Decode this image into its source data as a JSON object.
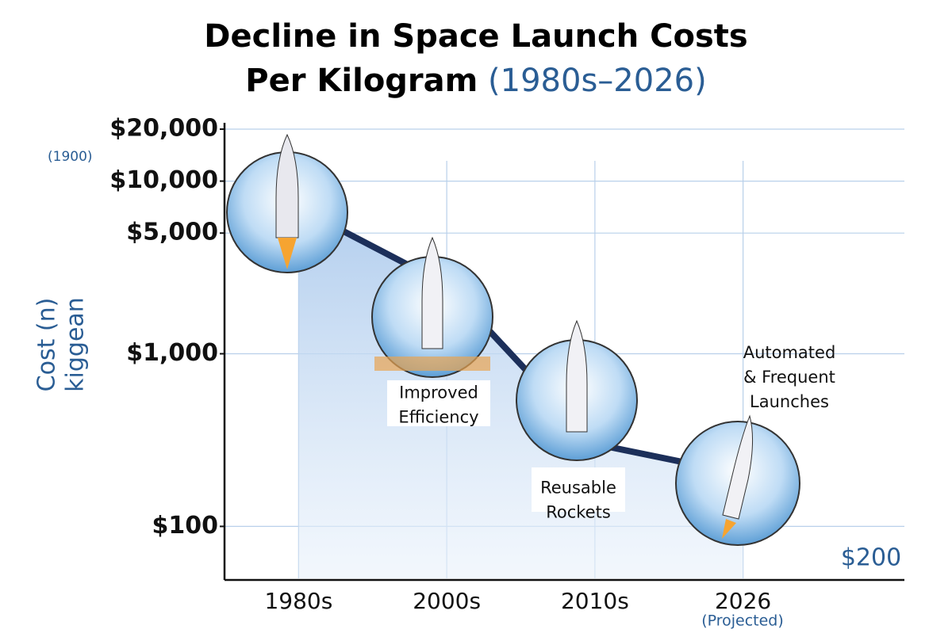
{
  "chart_data": {
    "type": "line",
    "title": "Decline in Space Launch Costs",
    "title_line2": "Per Kilogram",
    "subtitle": "(1980s–2026)",
    "y_label": [
      "Cost (n)",
      "kiggean"
    ],
    "top_tick_note": "(1900)",
    "categories": [
      "1980s",
      "2000s",
      "2010s",
      "2026"
    ],
    "category_note": "(Projected)",
    "series": [
      {
        "name": "Launch cost per kg",
        "color": "#1c2f5a",
        "values": [
          7000,
          2500,
          300,
          200
        ]
      }
    ],
    "ylim": [
      50,
      20000
    ],
    "log_y": true,
    "yticks": [
      {
        "value": 100,
        "label": "$100"
      },
      {
        "value": 1000,
        "label": "$1,000"
      },
      {
        "value": 5000,
        "label": "$5,000"
      },
      {
        "value": 10000,
        "label": "$10,000"
      },
      {
        "value": 20000,
        "label": "$20,000"
      }
    ],
    "grid": true,
    "annotations": [
      "Improved Efficiency",
      "Reusable Rockets",
      "Automated & Frequent Launches",
      "$200"
    ]
  }
}
